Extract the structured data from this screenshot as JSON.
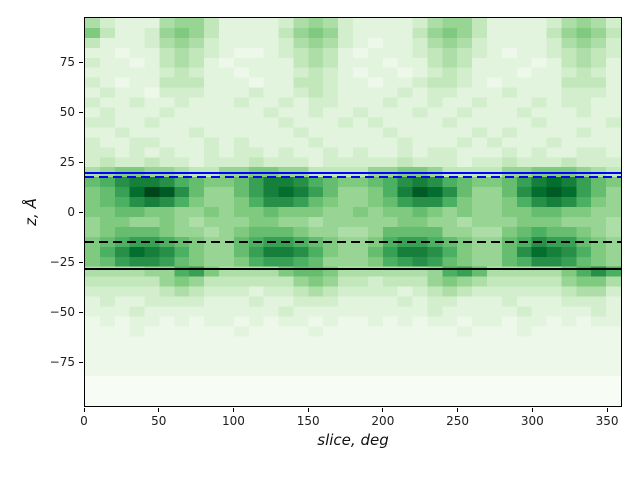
{
  "figure": {
    "background": "#ffffff"
  },
  "chart_data": {
    "type": "heatmap",
    "title": "",
    "xlabel": "slice, deg",
    "ylabel": "z, Å",
    "xlim": [
      0,
      360
    ],
    "ylim": [
      -97.5,
      97.5
    ],
    "x_ticks": [
      0,
      50,
      100,
      150,
      200,
      250,
      300,
      350
    ],
    "y_ticks": [
      75,
      50,
      25,
      0,
      -25,
      -50,
      -75
    ],
    "grid_lines": "off",
    "legend": "none",
    "colormap": {
      "name": "Greens",
      "stops": [
        [
          0.0,
          "#f7fcf5"
        ],
        [
          0.125,
          "#e5f5e0"
        ],
        [
          0.25,
          "#c7e9c0"
        ],
        [
          0.375,
          "#a1d99b"
        ],
        [
          0.5,
          "#74c476"
        ],
        [
          0.625,
          "#41ab5d"
        ],
        [
          0.75,
          "#238b45"
        ],
        [
          0.875,
          "#006d2c"
        ],
        [
          1.0,
          "#00441b"
        ]
      ]
    },
    "grid": {
      "comment": "intensity 0-15 hex per cell; 36 columns of 10 deg (x=0..360), 39 rows of 5 Angstrom (z=+97.5 down to -97.5)",
      "cols": 36,
      "rows_count": 39,
      "x_start": 0,
      "x_step": 10,
      "z_top": 97.5,
      "z_step": 5,
      "scale_max": 15,
      "rows": [
        "532225664222235653222235664222235653",
        "742236764222246763222246764222246764",
        "422235653222235653212235653222235653",
        "221224543211234542122234543212234543",
        "322124542122224542221224542222124542",
        "222223432212223432122123432221223432",
        "321224442221224432212234432122224442",
        "232213332223223432222323322232223332",
        "322322322232232332223223223222323322",
        "232223222222322322322232232223222322",
        "332232222222232223232222322222322223",
        "223222232222223222223222223232222322",
        "322332223232222322222322232322232222",
        "332323223233232232322323322232322332",
        "343343323334333233333433323343334333",
        "567766544667766444466776444466777654",
        "89bccb98778accb987789bcb98778acdca87",
        "78adfeb8668acdca86679cedb8668bdeda86",
        "789bcb976679bba876678abb976679bcb976",
        "778877667677877766767787676677887766",
        "677667656667766566666776656667776665",
        "678887665678887665568888665578988765",
        "789aa9876689aa9876679aa9876689baa876",
        "79bdcb97668accb97668accb97668bdcb976",
        "78abba876679aa9866679aba876689bba876",
        "5555669a75555788755555569a85555579b9",
        "444446764444446764434446765444446775",
        "333334543332334543333234543333334553",
        "232233332223223332222323322232223332",
        "222322222222232222222223222223222232",
        "121221212212122121121212212212212122",
        "111211111121111211111111121112111111",
        "111111111111111111111111111111111111",
        "111111111111111111111111111111111111",
        "111111111111111111111111111111111111",
        "111111111111111111111111111111111111",
        "000000000000000000000000000000000000",
        "000000000000000000000000000000000000",
        "000000000000000000000000000000000000"
      ]
    },
    "hlines": [
      {
        "name": "upper-boundary-solid",
        "color": "#0000ff",
        "style": "solid",
        "z": 19.8,
        "width": 2.0
      },
      {
        "name": "upper-boundary-dashed",
        "color": "#0000ff",
        "style": "dashed",
        "z": 18.2,
        "width": 2.2
      },
      {
        "name": "lower-boundary-dashed",
        "color": "#000000",
        "style": "dashed",
        "z": -14.5,
        "width": 1.7
      },
      {
        "name": "lower-boundary-solid",
        "color": "#000000",
        "style": "solid",
        "z": -28.0,
        "width": 2.0
      }
    ]
  }
}
